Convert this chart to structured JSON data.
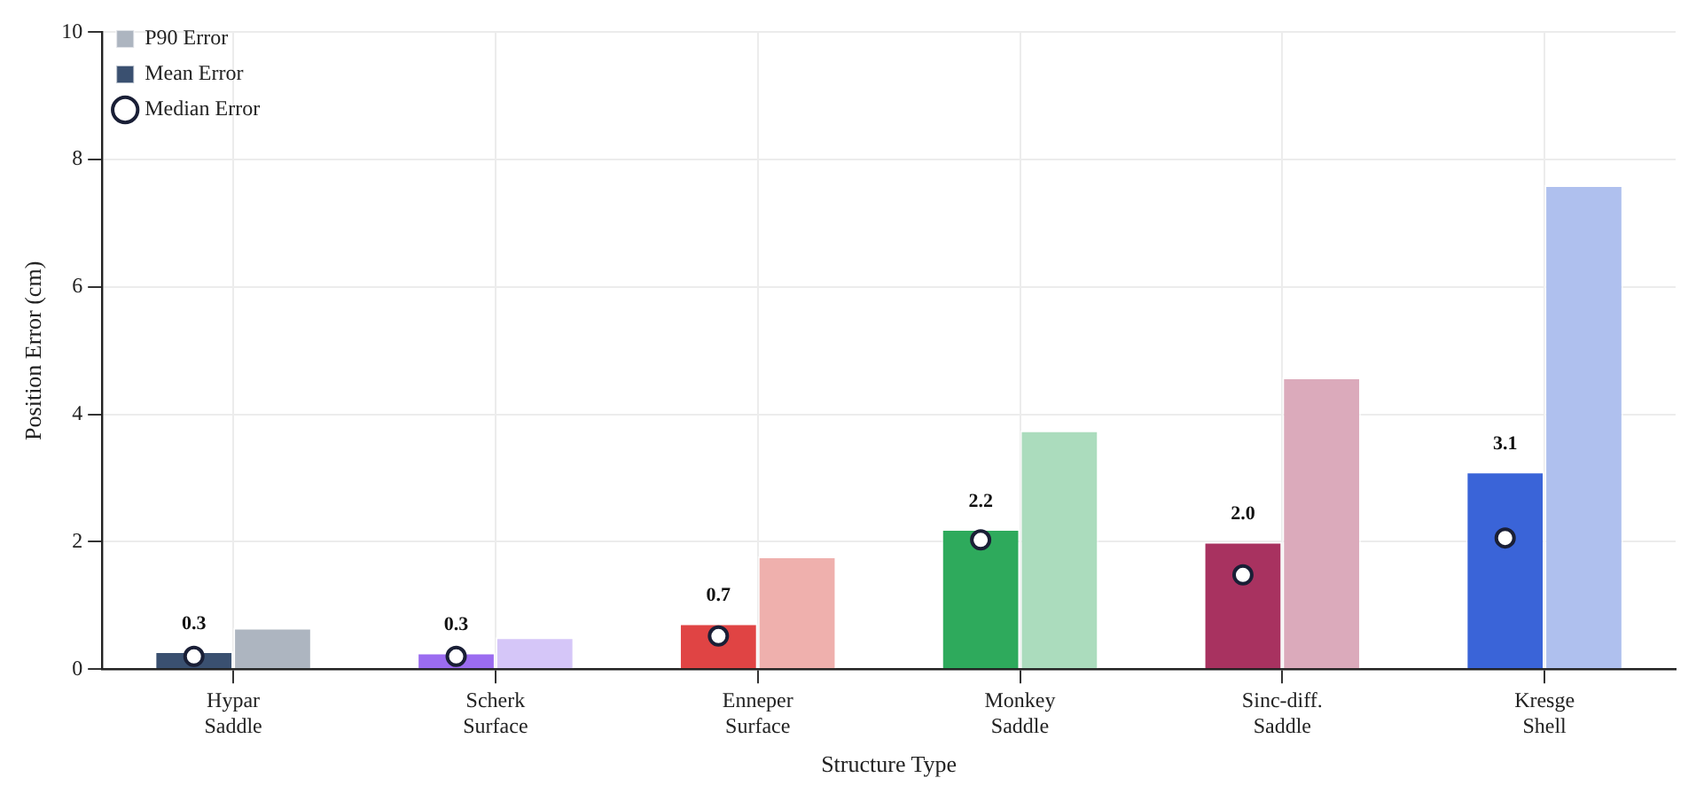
{
  "chart_data": {
    "type": "bar",
    "xlabel": "Structure Type",
    "ylabel": "Position Error (cm)",
    "categories": [
      "Hypar\nSaddle",
      "Scherk\nSurface",
      "Enneper\nSurface",
      "Monkey\nSaddle",
      "Sinc-diff.\nSaddle",
      "Kresge\nShell"
    ],
    "series": [
      {
        "name": "Mean Error",
        "colors": [
          "#3a5070",
          "#9b6cf0",
          "#e04444",
          "#2eaa5c",
          "#a83260",
          "#3a64d8"
        ],
        "values": [
          0.28,
          0.26,
          0.72,
          2.2,
          2.0,
          3.1
        ],
        "value_labels": [
          "0.3",
          "0.3",
          "0.7",
          "2.2",
          "2.0",
          "3.1"
        ]
      },
      {
        "name": "P90 Error",
        "colors": [
          "#adb5c0",
          "#d5c6f8",
          "#efb0ad",
          "#abdcbd",
          "#dbaabb",
          "#afc0ee"
        ],
        "values": [
          0.65,
          0.5,
          1.77,
          3.75,
          4.58,
          7.6
        ]
      },
      {
        "name": "Median Error",
        "type": "scatter",
        "marker": "circle",
        "color": "#1a1f36",
        "x": [
          "Hypar\nSaddle",
          "Scherk\nSurface",
          "Enneper\nSurface",
          "Monkey\nSaddle",
          "Sinc-diff.\nSaddle",
          "Kresge\nShell"
        ],
        "values": [
          0.2,
          0.2,
          0.52,
          2.03,
          1.48,
          2.06
        ]
      }
    ],
    "ylim": [
      0,
      10
    ],
    "yticks": [
      0,
      2,
      4,
      6,
      8,
      10
    ],
    "grid": true,
    "legend": "top left"
  }
}
